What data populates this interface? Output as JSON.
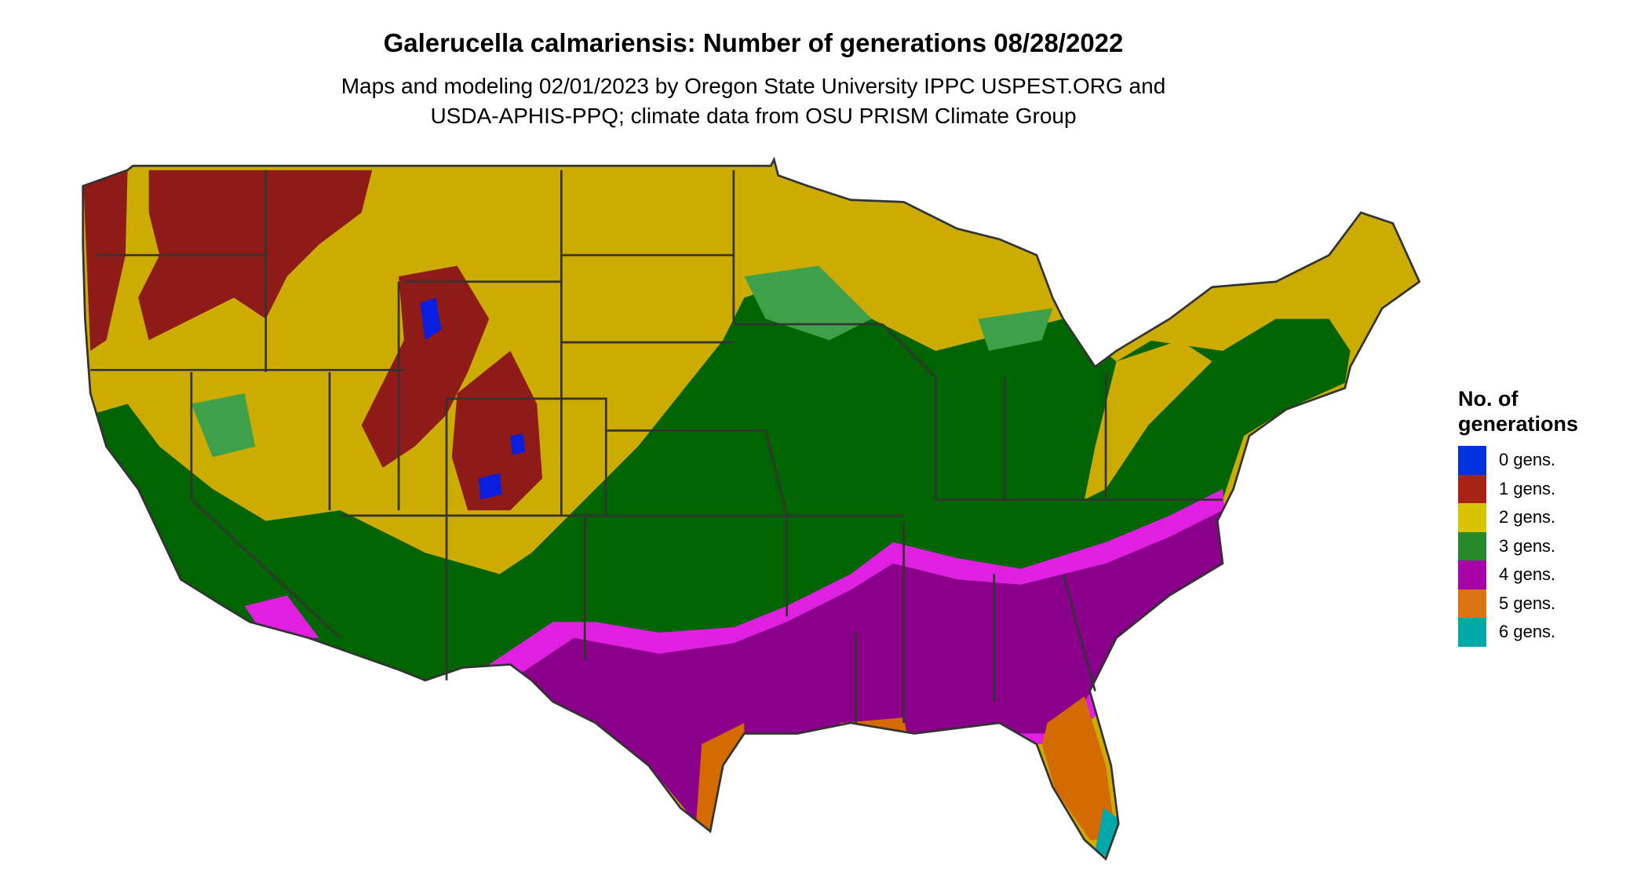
{
  "header": {
    "title": "Galerucella calmariensis: Number of generations 08/28/2022",
    "subtitle_line1": "Maps and modeling 02/01/2023 by Oregon State University IPPC USPEST.ORG and",
    "subtitle_line2": "USDA-APHIS-PPQ; climate data from OSU PRISM Climate Group"
  },
  "legend": {
    "title": "No. of generations",
    "items": [
      {
        "label": "0 gens.",
        "color": "#0033dd"
      },
      {
        "label": "1 gens.",
        "color": "#a82315"
      },
      {
        "label": "2 gens.",
        "color": "#d9c200"
      },
      {
        "label": "3 gens.",
        "color": "#268a2b"
      },
      {
        "label": "4 gens.",
        "color": "#a600a6"
      },
      {
        "label": "5 gens.",
        "color": "#dc7414"
      },
      {
        "label": "6 gens.",
        "color": "#00a8a8"
      }
    ]
  },
  "map_colors": {
    "0": "#0a1ee0",
    "1": "#8e1b17",
    "2": "#ccac00",
    "3": "#006400",
    "3_light": "#3fa04a",
    "4": "#8b008b",
    "4_light": "#e020e0",
    "5": "#d46a00",
    "6": "#00a8a8",
    "borders": "#333333"
  }
}
